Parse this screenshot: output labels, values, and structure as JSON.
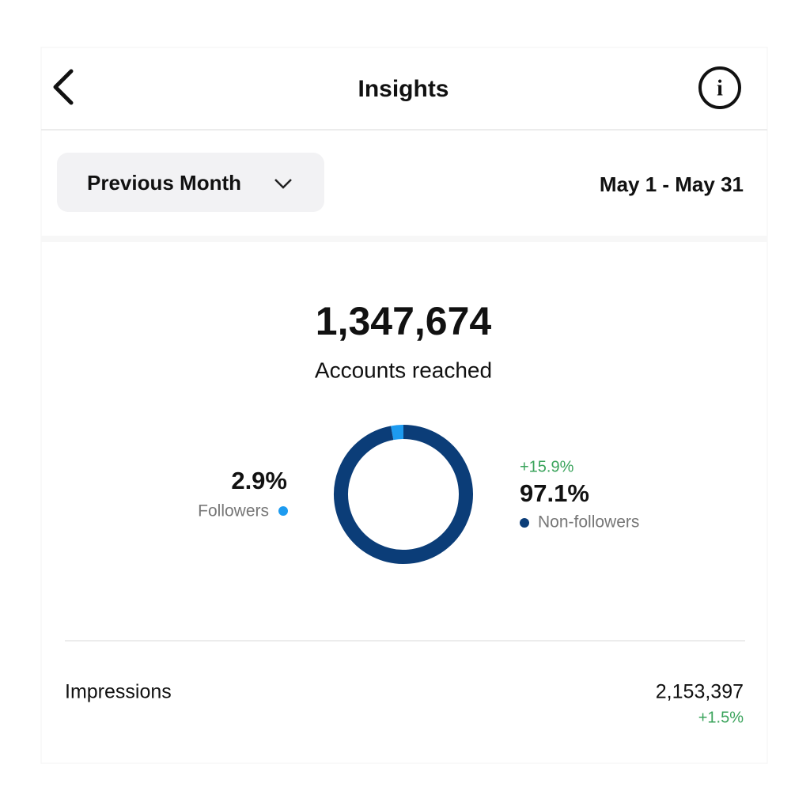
{
  "header": {
    "title": "Insights"
  },
  "filter": {
    "period": "Previous Month",
    "date_range": "May 1 - May 31"
  },
  "reach": {
    "total": "1,347,674",
    "label": "Accounts reached",
    "segments": [
      {
        "name": "Followers",
        "value": 2.9,
        "value_label": "2.9%",
        "color": "#1d9bf0"
      },
      {
        "name": "Non-followers",
        "value": 97.1,
        "value_label": "97.1%",
        "change": "+15.9%",
        "color": "#0b3d78"
      }
    ]
  },
  "impressions": {
    "label": "Impressions",
    "value": "2,153,397",
    "change": "+1.5%"
  }
}
